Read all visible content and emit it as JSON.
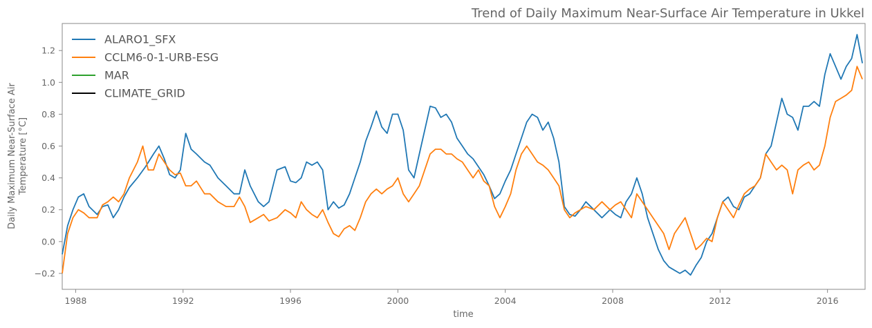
{
  "chart_data": {
    "type": "line",
    "title": "Trend of Daily Maximum Near-Surface Air Temperature in Ukkel",
    "xlabel": "time",
    "ylabel_lines": [
      "Daily Maximum Near-Surface Air",
      "Temperature [°C]"
    ],
    "xlim": [
      1987.5,
      2017.4
    ],
    "ylim": [
      -0.3,
      1.37
    ],
    "x_ticks": [
      1988,
      1992,
      1996,
      2000,
      2004,
      2008,
      2012,
      2016
    ],
    "x_tick_labels": [
      "1988",
      "1992",
      "1996",
      "2000",
      "2004",
      "2008",
      "2012",
      "2016"
    ],
    "y_ticks": [
      -0.2,
      0.0,
      0.2,
      0.4,
      0.6,
      0.8,
      1.0,
      1.2
    ],
    "y_tick_labels": [
      "−0.2",
      "0.0",
      "0.2",
      "0.4",
      "0.6",
      "0.8",
      "1.0",
      "1.2"
    ],
    "grid": false,
    "legend_position": "top-left",
    "series": [
      {
        "name": "ALARO1_SFX",
        "color": "#1f77b4",
        "points": [
          [
            1987.5,
            -0.08
          ],
          [
            1987.7,
            0.1
          ],
          [
            1987.9,
            0.2
          ],
          [
            1988.1,
            0.28
          ],
          [
            1988.3,
            0.3
          ],
          [
            1988.5,
            0.22
          ],
          [
            1988.8,
            0.17
          ],
          [
            1989.0,
            0.22
          ],
          [
            1989.2,
            0.23
          ],
          [
            1989.4,
            0.15
          ],
          [
            1989.6,
            0.2
          ],
          [
            1989.8,
            0.28
          ],
          [
            1990.0,
            0.34
          ],
          [
            1990.3,
            0.4
          ],
          [
            1990.6,
            0.47
          ],
          [
            1990.9,
            0.55
          ],
          [
            1991.1,
            0.6
          ],
          [
            1991.3,
            0.52
          ],
          [
            1991.5,
            0.42
          ],
          [
            1991.7,
            0.4
          ],
          [
            1991.9,
            0.45
          ],
          [
            1992.1,
            0.68
          ],
          [
            1992.3,
            0.58
          ],
          [
            1992.5,
            0.55
          ],
          [
            1992.8,
            0.5
          ],
          [
            1993.0,
            0.48
          ],
          [
            1993.3,
            0.4
          ],
          [
            1993.6,
            0.35
          ],
          [
            1993.9,
            0.3
          ],
          [
            1994.1,
            0.3
          ],
          [
            1994.3,
            0.45
          ],
          [
            1994.5,
            0.35
          ],
          [
            1994.8,
            0.25
          ],
          [
            1995.0,
            0.22
          ],
          [
            1995.2,
            0.25
          ],
          [
            1995.5,
            0.45
          ],
          [
            1995.8,
            0.47
          ],
          [
            1996.0,
            0.38
          ],
          [
            1996.2,
            0.37
          ],
          [
            1996.4,
            0.4
          ],
          [
            1996.6,
            0.5
          ],
          [
            1996.8,
            0.48
          ],
          [
            1997.0,
            0.5
          ],
          [
            1997.2,
            0.45
          ],
          [
            1997.4,
            0.2
          ],
          [
            1997.6,
            0.25
          ],
          [
            1997.8,
            0.21
          ],
          [
            1998.0,
            0.23
          ],
          [
            1998.2,
            0.3
          ],
          [
            1998.4,
            0.4
          ],
          [
            1998.6,
            0.5
          ],
          [
            1998.8,
            0.63
          ],
          [
            1999.0,
            0.72
          ],
          [
            1999.2,
            0.82
          ],
          [
            1999.4,
            0.72
          ],
          [
            1999.6,
            0.68
          ],
          [
            1999.8,
            0.8
          ],
          [
            2000.0,
            0.8
          ],
          [
            2000.2,
            0.7
          ],
          [
            2000.4,
            0.45
          ],
          [
            2000.6,
            0.4
          ],
          [
            2000.8,
            0.55
          ],
          [
            2001.0,
            0.7
          ],
          [
            2001.2,
            0.85
          ],
          [
            2001.4,
            0.84
          ],
          [
            2001.6,
            0.78
          ],
          [
            2001.8,
            0.8
          ],
          [
            2002.0,
            0.75
          ],
          [
            2002.2,
            0.65
          ],
          [
            2002.4,
            0.6
          ],
          [
            2002.6,
            0.55
          ],
          [
            2002.8,
            0.52
          ],
          [
            2003.0,
            0.47
          ],
          [
            2003.2,
            0.42
          ],
          [
            2003.4,
            0.35
          ],
          [
            2003.6,
            0.27
          ],
          [
            2003.8,
            0.3
          ],
          [
            2004.0,
            0.38
          ],
          [
            2004.2,
            0.45
          ],
          [
            2004.4,
            0.55
          ],
          [
            2004.6,
            0.65
          ],
          [
            2004.8,
            0.75
          ],
          [
            2005.0,
            0.8
          ],
          [
            2005.2,
            0.78
          ],
          [
            2005.4,
            0.7
          ],
          [
            2005.6,
            0.75
          ],
          [
            2005.8,
            0.65
          ],
          [
            2006.0,
            0.5
          ],
          [
            2006.2,
            0.22
          ],
          [
            2006.4,
            0.17
          ],
          [
            2006.6,
            0.16
          ],
          [
            2006.8,
            0.2
          ],
          [
            2007.0,
            0.25
          ],
          [
            2007.3,
            0.2
          ],
          [
            2007.6,
            0.15
          ],
          [
            2007.9,
            0.2
          ],
          [
            2008.1,
            0.17
          ],
          [
            2008.3,
            0.15
          ],
          [
            2008.5,
            0.25
          ],
          [
            2008.7,
            0.3
          ],
          [
            2008.9,
            0.4
          ],
          [
            2009.1,
            0.3
          ],
          [
            2009.3,
            0.15
          ],
          [
            2009.5,
            0.05
          ],
          [
            2009.7,
            -0.05
          ],
          [
            2009.9,
            -0.12
          ],
          [
            2010.1,
            -0.16
          ],
          [
            2010.3,
            -0.18
          ],
          [
            2010.5,
            -0.2
          ],
          [
            2010.7,
            -0.18
          ],
          [
            2010.9,
            -0.21
          ],
          [
            2011.1,
            -0.15
          ],
          [
            2011.3,
            -0.1
          ],
          [
            2011.5,
            0.0
          ],
          [
            2011.7,
            0.05
          ],
          [
            2011.9,
            0.15
          ],
          [
            2012.1,
            0.25
          ],
          [
            2012.3,
            0.28
          ],
          [
            2012.5,
            0.22
          ],
          [
            2012.7,
            0.2
          ],
          [
            2012.9,
            0.28
          ],
          [
            2013.1,
            0.3
          ],
          [
            2013.3,
            0.35
          ],
          [
            2013.5,
            0.4
          ],
          [
            2013.7,
            0.55
          ],
          [
            2013.9,
            0.6
          ],
          [
            2014.1,
            0.75
          ],
          [
            2014.3,
            0.9
          ],
          [
            2014.5,
            0.8
          ],
          [
            2014.7,
            0.78
          ],
          [
            2014.9,
            0.7
          ],
          [
            2015.1,
            0.85
          ],
          [
            2015.3,
            0.85
          ],
          [
            2015.5,
            0.88
          ],
          [
            2015.7,
            0.85
          ],
          [
            2015.9,
            1.05
          ],
          [
            2016.1,
            1.18
          ],
          [
            2016.3,
            1.1
          ],
          [
            2016.5,
            1.02
          ],
          [
            2016.7,
            1.1
          ],
          [
            2016.9,
            1.15
          ],
          [
            2017.1,
            1.3
          ],
          [
            2017.3,
            1.12
          ]
        ]
      },
      {
        "name": "CCLM6-0-1-URB-ESG",
        "color": "#ff7f0e",
        "points": [
          [
            1987.5,
            -0.2
          ],
          [
            1987.7,
            0.05
          ],
          [
            1987.9,
            0.15
          ],
          [
            1988.1,
            0.2
          ],
          [
            1988.3,
            0.18
          ],
          [
            1988.5,
            0.15
          ],
          [
            1988.8,
            0.15
          ],
          [
            1989.0,
            0.23
          ],
          [
            1989.2,
            0.25
          ],
          [
            1989.4,
            0.28
          ],
          [
            1989.6,
            0.25
          ],
          [
            1989.8,
            0.3
          ],
          [
            1990.0,
            0.4
          ],
          [
            1990.3,
            0.5
          ],
          [
            1990.5,
            0.6
          ],
          [
            1990.7,
            0.45
          ],
          [
            1990.9,
            0.45
          ],
          [
            1991.1,
            0.55
          ],
          [
            1991.3,
            0.5
          ],
          [
            1991.5,
            0.45
          ],
          [
            1991.7,
            0.42
          ],
          [
            1991.9,
            0.43
          ],
          [
            1992.1,
            0.35
          ],
          [
            1992.3,
            0.35
          ],
          [
            1992.5,
            0.38
          ],
          [
            1992.8,
            0.3
          ],
          [
            1993.0,
            0.3
          ],
          [
            1993.3,
            0.25
          ],
          [
            1993.6,
            0.22
          ],
          [
            1993.9,
            0.22
          ],
          [
            1994.1,
            0.28
          ],
          [
            1994.3,
            0.22
          ],
          [
            1994.5,
            0.12
          ],
          [
            1994.8,
            0.15
          ],
          [
            1995.0,
            0.17
          ],
          [
            1995.2,
            0.13
          ],
          [
            1995.5,
            0.15
          ],
          [
            1995.8,
            0.2
          ],
          [
            1996.0,
            0.18
          ],
          [
            1996.2,
            0.15
          ],
          [
            1996.4,
            0.25
          ],
          [
            1996.6,
            0.2
          ],
          [
            1996.8,
            0.17
          ],
          [
            1997.0,
            0.15
          ],
          [
            1997.2,
            0.2
          ],
          [
            1997.4,
            0.12
          ],
          [
            1997.6,
            0.05
          ],
          [
            1997.8,
            0.03
          ],
          [
            1998.0,
            0.08
          ],
          [
            1998.2,
            0.1
          ],
          [
            1998.4,
            0.07
          ],
          [
            1998.6,
            0.15
          ],
          [
            1998.8,
            0.25
          ],
          [
            1999.0,
            0.3
          ],
          [
            1999.2,
            0.33
          ],
          [
            1999.4,
            0.3
          ],
          [
            1999.6,
            0.33
          ],
          [
            1999.8,
            0.35
          ],
          [
            2000.0,
            0.4
          ],
          [
            2000.2,
            0.3
          ],
          [
            2000.4,
            0.25
          ],
          [
            2000.6,
            0.3
          ],
          [
            2000.8,
            0.35
          ],
          [
            2001.0,
            0.45
          ],
          [
            2001.2,
            0.55
          ],
          [
            2001.4,
            0.58
          ],
          [
            2001.6,
            0.58
          ],
          [
            2001.8,
            0.55
          ],
          [
            2002.0,
            0.55
          ],
          [
            2002.2,
            0.52
          ],
          [
            2002.4,
            0.5
          ],
          [
            2002.6,
            0.45
          ],
          [
            2002.8,
            0.4
          ],
          [
            2003.0,
            0.45
          ],
          [
            2003.2,
            0.38
          ],
          [
            2003.4,
            0.35
          ],
          [
            2003.6,
            0.22
          ],
          [
            2003.8,
            0.15
          ],
          [
            2004.0,
            0.22
          ],
          [
            2004.2,
            0.3
          ],
          [
            2004.4,
            0.45
          ],
          [
            2004.6,
            0.55
          ],
          [
            2004.8,
            0.6
          ],
          [
            2005.0,
            0.55
          ],
          [
            2005.2,
            0.5
          ],
          [
            2005.4,
            0.48
          ],
          [
            2005.6,
            0.45
          ],
          [
            2005.8,
            0.4
          ],
          [
            2006.0,
            0.35
          ],
          [
            2006.2,
            0.2
          ],
          [
            2006.4,
            0.15
          ],
          [
            2006.6,
            0.18
          ],
          [
            2006.8,
            0.2
          ],
          [
            2007.0,
            0.22
          ],
          [
            2007.3,
            0.2
          ],
          [
            2007.6,
            0.25
          ],
          [
            2007.9,
            0.2
          ],
          [
            2008.1,
            0.23
          ],
          [
            2008.3,
            0.25
          ],
          [
            2008.5,
            0.2
          ],
          [
            2008.7,
            0.15
          ],
          [
            2008.9,
            0.3
          ],
          [
            2009.1,
            0.25
          ],
          [
            2009.3,
            0.2
          ],
          [
            2009.5,
            0.15
          ],
          [
            2009.7,
            0.1
          ],
          [
            2009.9,
            0.05
          ],
          [
            2010.1,
            -0.05
          ],
          [
            2010.3,
            0.05
          ],
          [
            2010.5,
            0.1
          ],
          [
            2010.7,
            0.15
          ],
          [
            2010.9,
            0.05
          ],
          [
            2011.1,
            -0.05
          ],
          [
            2011.3,
            -0.02
          ],
          [
            2011.5,
            0.02
          ],
          [
            2011.7,
            0.0
          ],
          [
            2011.9,
            0.15
          ],
          [
            2012.1,
            0.25
          ],
          [
            2012.3,
            0.2
          ],
          [
            2012.5,
            0.15
          ],
          [
            2012.7,
            0.23
          ],
          [
            2012.9,
            0.3
          ],
          [
            2013.1,
            0.33
          ],
          [
            2013.3,
            0.35
          ],
          [
            2013.5,
            0.4
          ],
          [
            2013.7,
            0.55
          ],
          [
            2013.9,
            0.5
          ],
          [
            2014.1,
            0.45
          ],
          [
            2014.3,
            0.48
          ],
          [
            2014.5,
            0.45
          ],
          [
            2014.7,
            0.3
          ],
          [
            2014.9,
            0.45
          ],
          [
            2015.1,
            0.48
          ],
          [
            2015.3,
            0.5
          ],
          [
            2015.5,
            0.45
          ],
          [
            2015.7,
            0.48
          ],
          [
            2015.9,
            0.6
          ],
          [
            2016.1,
            0.78
          ],
          [
            2016.3,
            0.88
          ],
          [
            2016.5,
            0.9
          ],
          [
            2016.7,
            0.92
          ],
          [
            2016.9,
            0.95
          ],
          [
            2017.1,
            1.1
          ],
          [
            2017.3,
            1.02
          ]
        ]
      },
      {
        "name": "MAR",
        "color": "#2ca02c",
        "points": []
      },
      {
        "name": "CLIMATE_GRID",
        "color": "#000000",
        "points": []
      }
    ]
  }
}
